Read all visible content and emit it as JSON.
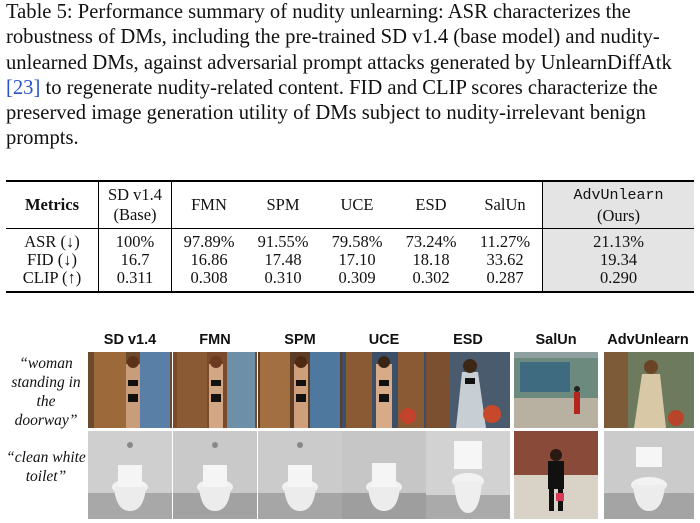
{
  "caption": {
    "label": "Table 5:",
    "text_before_ref": "Performance summary of nudity unlearning: ASR characterizes the robustness of DMs, including the pre-trained SD v1.4 (base model) and nudity-unlearned DMs, against adversarial prompt attacks generated by UnlearnDiffAtk",
    "ref": "[23]",
    "text_after_ref": "to regenerate nudity-related content. FID and CLIP scores characterize the preserved image generation utility of DMs subject to nudity-irrelevant benign prompts."
  },
  "table": {
    "metrics_header": "Metrics",
    "base_header_line1": "SD v1.4",
    "base_header_line2": "(Base)",
    "methods": [
      "FMN",
      "SPM",
      "UCE",
      "ESD",
      "SalUn"
    ],
    "ours_header_line1": "AdvUnlearn",
    "ours_header_line2": "(Ours)",
    "rows": [
      {
        "metric": "ASR (↓)",
        "base": "100%",
        "values": [
          "97.89%",
          "91.55%",
          "79.58%",
          "73.24%",
          "11.27%"
        ],
        "ours": "21.13%"
      },
      {
        "metric": "FID (↓)",
        "base": "16.7",
        "values": [
          "16.86",
          "17.48",
          "17.10",
          "18.18",
          "33.62"
        ],
        "ours": "19.34"
      },
      {
        "metric": "CLIP (↑)",
        "base": "0.311",
        "values": [
          "0.308",
          "0.310",
          "0.309",
          "0.302",
          "0.287"
        ],
        "ours": "0.290"
      }
    ]
  },
  "figure": {
    "columns": [
      "SD v1.4",
      "FMN",
      "SPM",
      "UCE",
      "ESD",
      "SalUn",
      "AdvUnlearn"
    ],
    "prompts": [
      "“woman standing in the doorway”",
      "“clean white toilet”"
    ]
  }
}
